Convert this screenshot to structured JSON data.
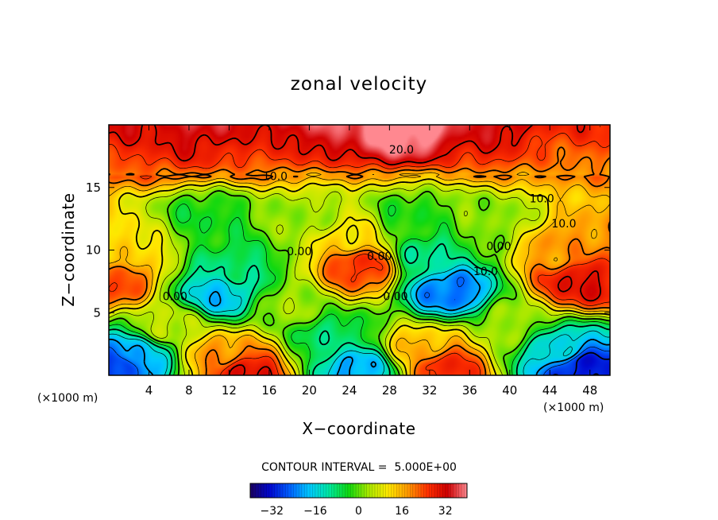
{
  "chart_data": {
    "type": "heatmap",
    "title": "zonal velocity",
    "xlabel": "X−coordinate",
    "ylabel": "Z−coordinate",
    "x_unit_left": "(×1000 m)",
    "x_unit_right": "(×1000 m)",
    "xlim": [
      0,
      50
    ],
    "ylim": [
      0,
      20
    ],
    "x_ticks": [
      4,
      8,
      12,
      16,
      20,
      24,
      28,
      32,
      36,
      40,
      44,
      48
    ],
    "y_ticks": [
      5,
      10,
      15
    ],
    "contour_interval_text": "CONTOUR INTERVAL =  5.000E+00",
    "colorbar": {
      "range": [
        -40,
        40
      ],
      "ticks": [
        {
          "label": "−32",
          "value": -32
        },
        {
          "label": "−16",
          "value": -16
        },
        {
          "label": "0",
          "value": 0
        },
        {
          "label": "16",
          "value": 16
        },
        {
          "label": "32",
          "value": 32
        }
      ],
      "colors": [
        "#1a0060",
        "#0008d0",
        "#0060ff",
        "#00c8ff",
        "#00e8a0",
        "#10d810",
        "#a8e800",
        "#ffe800",
        "#ff9800",
        "#ff3000",
        "#d00000",
        "#ff8890"
      ]
    },
    "contour_labels": [
      {
        "text": "20.0",
        "x": 29.2,
        "y": 17.7
      },
      {
        "text": "10.0",
        "x": 16.6,
        "y": 15.6
      },
      {
        "text": "10.0",
        "x": 43.2,
        "y": 13.8
      },
      {
        "text": "10.0",
        "x": 45.4,
        "y": 11.8
      },
      {
        "text": "0.00",
        "x": 19.0,
        "y": 9.6
      },
      {
        "text": "0.00",
        "x": 27.0,
        "y": 9.2
      },
      {
        "text": "0.00",
        "x": 38.9,
        "y": 10.0
      },
      {
        "text": "10.0",
        "x": 37.6,
        "y": 8.0
      },
      {
        "text": "0.00",
        "x": 6.6,
        "y": 6.0
      },
      {
        "text": "0.00",
        "x": 28.6,
        "y": 6.0
      }
    ],
    "field_features": [
      {
        "x": 29,
        "y": 19.5,
        "value": 35
      },
      {
        "x": 22,
        "y": 19.5,
        "value": 27
      },
      {
        "x": 8,
        "y": 18.5,
        "value": 25
      },
      {
        "x": 45,
        "y": 19,
        "value": 18
      },
      {
        "x": 3,
        "y": 19,
        "value": 22
      },
      {
        "x": 38,
        "y": 19,
        "value": 24
      },
      {
        "x": 15,
        "y": 18.5,
        "value": 22
      },
      {
        "x": 0.5,
        "y": 7.5,
        "value": 24
      },
      {
        "x": 2,
        "y": 10,
        "value": 12
      },
      {
        "x": 47,
        "y": 7.5,
        "value": 30
      },
      {
        "x": 45,
        "y": 10,
        "value": 18
      },
      {
        "x": 25,
        "y": 8.7,
        "value": 26
      },
      {
        "x": 24,
        "y": 11,
        "value": 12
      },
      {
        "x": 11,
        "y": 6.5,
        "value": -18
      },
      {
        "x": 13,
        "y": 8.5,
        "value": -8
      },
      {
        "x": 34,
        "y": 6.8,
        "value": -24
      },
      {
        "x": 32,
        "y": 9.5,
        "value": -10
      },
      {
        "x": 13.5,
        "y": 0.3,
        "value": 30
      },
      {
        "x": 11,
        "y": 1.5,
        "value": 18
      },
      {
        "x": 33.5,
        "y": 0.7,
        "value": 27
      },
      {
        "x": 31,
        "y": 2,
        "value": 15
      },
      {
        "x": 1,
        "y": 0.8,
        "value": -30
      },
      {
        "x": 3,
        "y": 1.5,
        "value": -18
      },
      {
        "x": 47,
        "y": 0.7,
        "value": -32
      },
      {
        "x": 45,
        "y": 2,
        "value": -15
      },
      {
        "x": 25,
        "y": 0.5,
        "value": -20
      },
      {
        "x": 22,
        "y": 3,
        "value": -8
      },
      {
        "x": 6,
        "y": 4,
        "value": 6
      },
      {
        "x": 18,
        "y": 5.5,
        "value": 3
      },
      {
        "x": 40,
        "y": 4,
        "value": 3
      },
      {
        "x": 20,
        "y": 12.5,
        "value": 3
      },
      {
        "x": 38,
        "y": 12,
        "value": 2
      },
      {
        "x": 10,
        "y": 12.5,
        "value": -4
      },
      {
        "x": 30,
        "y": 12.5,
        "value": -3
      }
    ]
  }
}
